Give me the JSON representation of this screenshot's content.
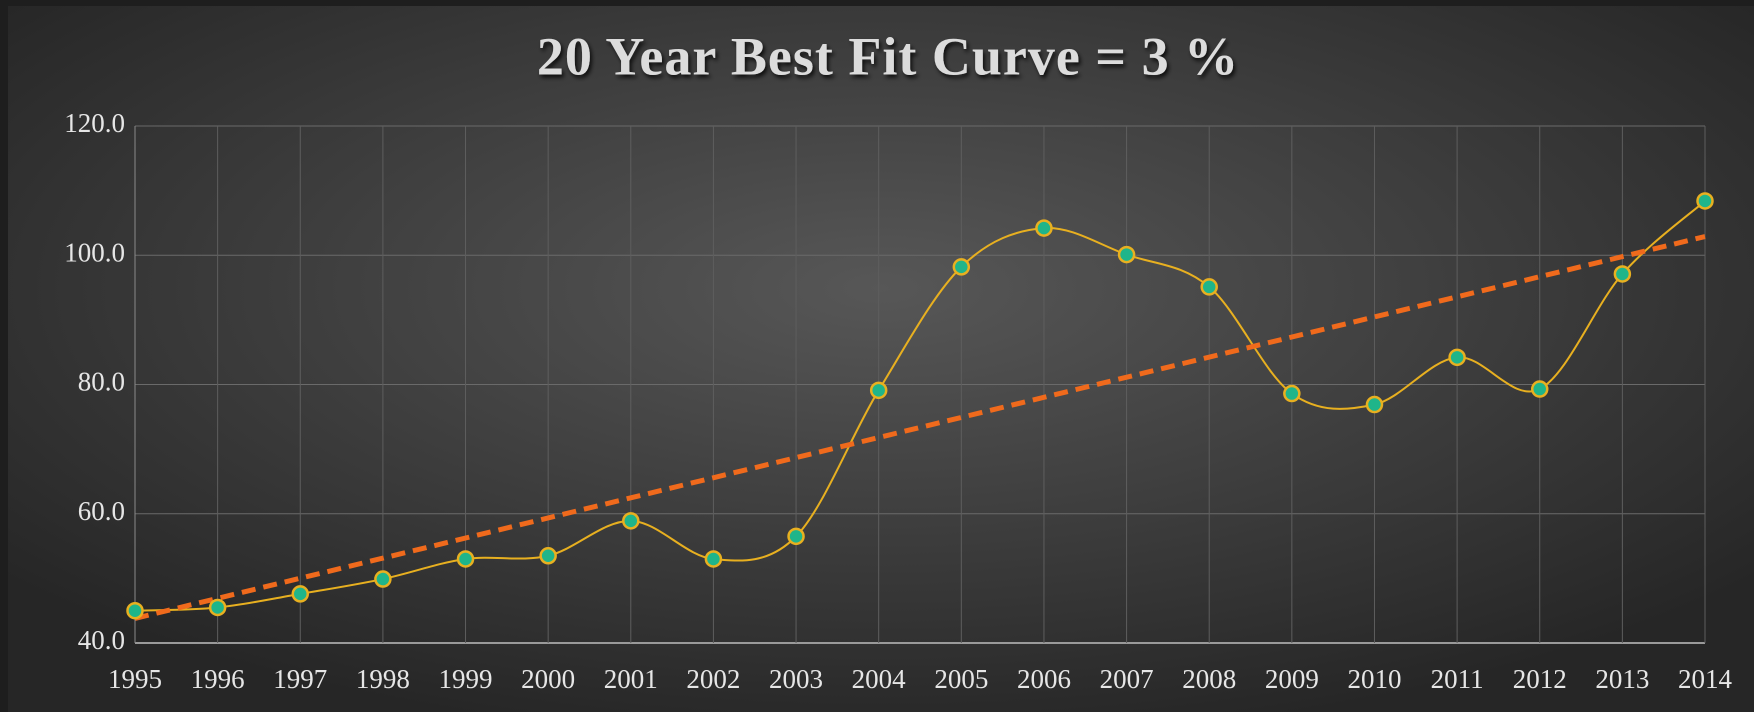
{
  "chart_data": {
    "type": "line",
    "title": "20 Year Best Fit Curve = 3 %",
    "categories": [
      "1995",
      "1996",
      "1997",
      "1998",
      "1999",
      "2000",
      "2001",
      "2002",
      "2003",
      "2004",
      "2005",
      "2006",
      "2007",
      "2008",
      "2009",
      "2010",
      "2011",
      "2012",
      "2013",
      "2014"
    ],
    "series": [
      {
        "color": "#e8b020",
        "marker_color": "#1fb58a",
        "values": [
          45.0,
          45.5,
          47.6,
          49.9,
          53.0,
          53.5,
          58.9,
          53.0,
          56.5,
          79.1,
          98.2,
          104.2,
          100.1,
          95.1,
          78.6,
          76.9,
          84.2,
          79.3,
          97.1,
          108.4
        ]
      }
    ],
    "trendline": {
      "color": "#f06a1c",
      "values": [
        43.8,
        102.9
      ]
    },
    "ylim": [
      40,
      120
    ],
    "yticks": [
      {
        "value": 40,
        "label": "40.0"
      },
      {
        "value": 60,
        "label": "60.0"
      },
      {
        "value": 80,
        "label": "80.0"
      },
      {
        "value": 100,
        "label": "100.0"
      },
      {
        "value": 120,
        "label": "120.0"
      }
    ],
    "grid": true
  }
}
